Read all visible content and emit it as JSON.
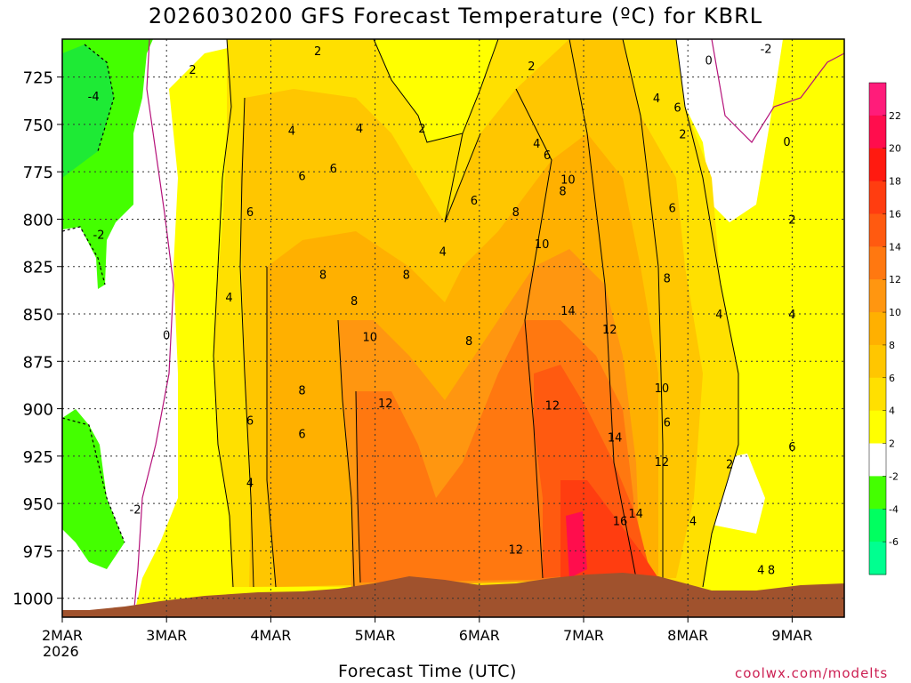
{
  "title": "2026030200 GFS Forecast Temperature (ºC) for KBRL",
  "xaxis_title": "Forecast Time (UTC)",
  "credit": "coolwx.com/modelts",
  "chart_data": {
    "type": "heatmap",
    "title": "2026030200 GFS Forecast Temperature (ºC) for KBRL",
    "xlabel": "Forecast Time (UTC)",
    "ylabel": "",
    "x_ticks": [
      "2MAR",
      "3MAR",
      "4MAR",
      "5MAR",
      "6MAR",
      "7MAR",
      "8MAR",
      "9MAR"
    ],
    "x_sublabel": "2026",
    "y_ticks": [
      725,
      750,
      775,
      800,
      825,
      850,
      875,
      900,
      925,
      950,
      975,
      1000
    ],
    "ylim": [
      1010,
      705
    ],
    "xlim_days": [
      0,
      7.5
    ],
    "grid": true,
    "colorbar": {
      "labels": [
        22,
        20,
        18,
        16,
        14,
        12,
        10,
        8,
        6,
        4,
        2,
        -2,
        -4,
        -6
      ],
      "colors": [
        "#ff1c7a",
        "#ff0d4d",
        "#ff1a10",
        "#ff3d10",
        "#ff5a10",
        "#ff7810",
        "#ff9610",
        "#ffb000",
        "#ffc600",
        "#ffe000",
        "#ffff00",
        "#ffffff",
        "#44ff00",
        "#00ff60",
        "#00ff90"
      ]
    },
    "contour_labels": [
      {
        "value": -4,
        "day": 0.3,
        "p": 735
      },
      {
        "value": -2,
        "day": 0.35,
        "p": 808
      },
      {
        "value": -2,
        "day": 0.7,
        "p": 953
      },
      {
        "value": 0,
        "day": 1.0,
        "p": 861
      },
      {
        "value": 2,
        "day": 1.25,
        "p": 721
      },
      {
        "value": 4,
        "day": 1.6,
        "p": 841
      },
      {
        "value": 4,
        "day": 1.8,
        "p": 939
      },
      {
        "value": 6,
        "day": 1.8,
        "p": 796
      },
      {
        "value": 6,
        "day": 1.8,
        "p": 906
      },
      {
        "value": 2,
        "day": 2.45,
        "p": 711
      },
      {
        "value": 4,
        "day": 2.2,
        "p": 753
      },
      {
        "value": 6,
        "day": 2.3,
        "p": 777
      },
      {
        "value": 6,
        "day": 2.6,
        "p": 773
      },
      {
        "value": 6,
        "day": 2.3,
        "p": 913
      },
      {
        "value": 8,
        "day": 2.5,
        "p": 829
      },
      {
        "value": 8,
        "day": 2.3,
        "p": 890
      },
      {
        "value": 8,
        "day": 2.8,
        "p": 843
      },
      {
        "value": 4,
        "day": 2.85,
        "p": 752
      },
      {
        "value": 8,
        "day": 3.3,
        "p": 829
      },
      {
        "value": 10,
        "day": 2.95,
        "p": 862
      },
      {
        "value": 12,
        "day": 3.1,
        "p": 897
      },
      {
        "value": 2,
        "day": 3.45,
        "p": 752
      },
      {
        "value": 4,
        "day": 3.65,
        "p": 817
      },
      {
        "value": 8,
        "day": 3.9,
        "p": 864
      },
      {
        "value": 6,
        "day": 3.95,
        "p": 790
      },
      {
        "value": 8,
        "day": 4.35,
        "p": 796
      },
      {
        "value": 2,
        "day": 4.5,
        "p": 719
      },
      {
        "value": 4,
        "day": 4.55,
        "p": 760
      },
      {
        "value": 6,
        "day": 4.65,
        "p": 766
      },
      {
        "value": 10,
        "day": 4.6,
        "p": 813
      },
      {
        "value": 10,
        "day": 4.85,
        "p": 779
      },
      {
        "value": 8,
        "day": 4.8,
        "p": 785
      },
      {
        "value": 14,
        "day": 4.85,
        "p": 848
      },
      {
        "value": 12,
        "day": 4.7,
        "p": 898
      },
      {
        "value": 12,
        "day": 5.25,
        "p": 858
      },
      {
        "value": 14,
        "day": 5.3,
        "p": 915
      },
      {
        "value": 16,
        "day": 5.35,
        "p": 959
      },
      {
        "value": 14,
        "day": 5.5,
        "p": 955
      },
      {
        "value": 12,
        "day": 4.35,
        "p": 974
      },
      {
        "value": 10,
        "day": 5.75,
        "p": 889
      },
      {
        "value": 12,
        "day": 5.75,
        "p": 928
      },
      {
        "value": 6,
        "day": 5.9,
        "p": 741
      },
      {
        "value": 4,
        "day": 5.7,
        "p": 736
      },
      {
        "value": 2,
        "day": 5.95,
        "p": 755
      },
      {
        "value": 6,
        "day": 5.85,
        "p": 794
      },
      {
        "value": 8,
        "day": 5.8,
        "p": 831
      },
      {
        "value": 6,
        "day": 5.8,
        "p": 907
      },
      {
        "value": 4,
        "day": 6.05,
        "p": 959
      },
      {
        "value": 4,
        "day": 6.3,
        "p": 850
      },
      {
        "value": 2,
        "day": 6.4,
        "p": 929
      },
      {
        "value": 0,
        "day": 6.2,
        "p": 716
      },
      {
        "value": -2,
        "day": 6.75,
        "p": 710
      },
      {
        "value": 0,
        "day": 6.95,
        "p": 759
      },
      {
        "value": 2,
        "day": 7.0,
        "p": 800
      },
      {
        "value": 4,
        "day": 7.0,
        "p": 850
      },
      {
        "value": 6,
        "day": 7.0,
        "p": 920
      },
      {
        "value": 4,
        "day": 6.7,
        "p": 985
      },
      {
        "value": 8,
        "day": 6.8,
        "p": 985
      }
    ]
  }
}
